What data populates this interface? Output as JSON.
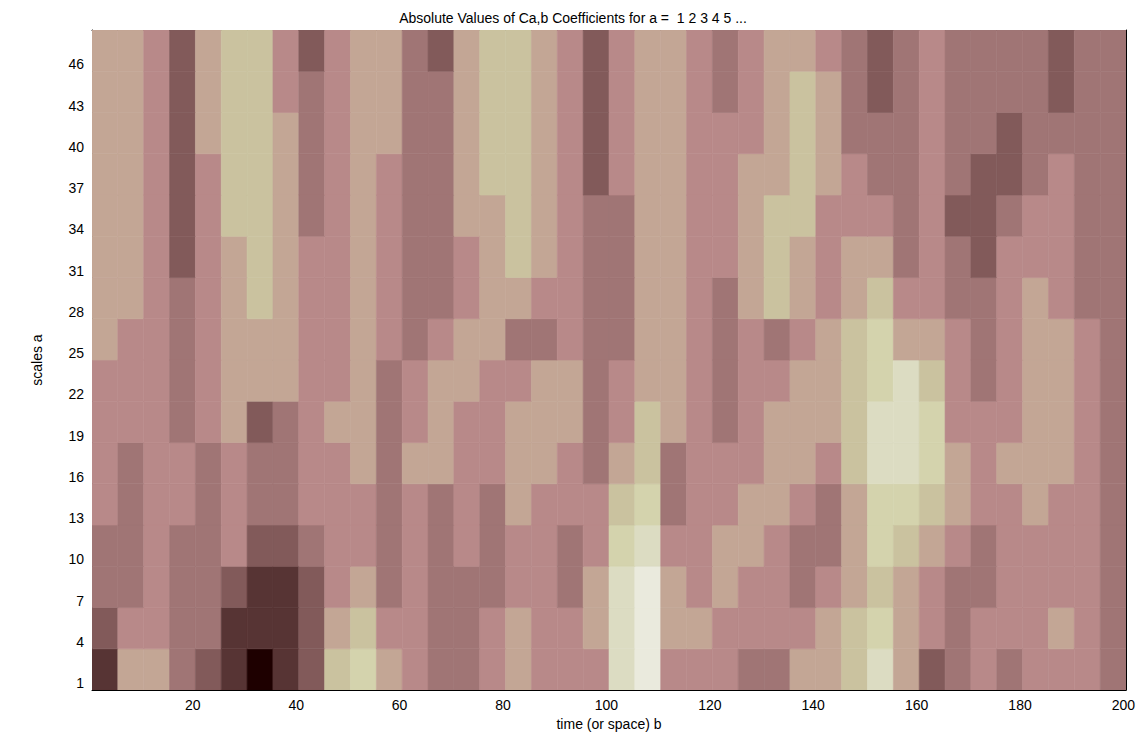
{
  "chart_data": {
    "type": "heatmap",
    "title": "Absolute Values of Ca,b Coefficients for a =  1 2 3 4 5 ...",
    "x_label": "time (or space) b",
    "y_label": "scales a",
    "x": [
      3,
      8,
      13,
      18,
      23,
      28,
      33,
      38,
      43,
      48,
      53,
      58,
      63,
      68,
      73,
      78,
      83,
      88,
      93,
      98,
      103,
      108,
      113,
      118,
      123,
      128,
      133,
      138,
      143,
      148,
      153,
      158,
      163,
      168,
      173,
      178,
      183,
      188,
      193,
      198
    ],
    "y": [
      2,
      5,
      8,
      11,
      14,
      17,
      20,
      23,
      26,
      29,
      32,
      35,
      38,
      41,
      44,
      47
    ],
    "xlim": [
      0.5,
      200.5
    ],
    "ylim": [
      0.5,
      48.5
    ],
    "xticks": [
      20,
      40,
      60,
      80,
      100,
      120,
      140,
      160,
      180,
      200
    ],
    "yticks": [
      1,
      4,
      7,
      10,
      13,
      16,
      19,
      22,
      25,
      28,
      31,
      34,
      37,
      40,
      43,
      46
    ],
    "zlim": [
      0,
      1
    ],
    "cells": [
      [
        0.1,
        0.5,
        0.5,
        0.3,
        0.2,
        0.1,
        0.0,
        0.1,
        0.2,
        0.6,
        0.7,
        0.5,
        0.4,
        0.3,
        0.3,
        0.4,
        0.5,
        0.4,
        0.4,
        0.4,
        0.8,
        0.9,
        0.4,
        0.4,
        0.4,
        0.3,
        0.3,
        0.5,
        0.5,
        0.6,
        0.8,
        0.5,
        0.2,
        0.3,
        0.4,
        0.3,
        0.4,
        0.4,
        0.4,
        0.3
      ],
      [
        0.2,
        0.4,
        0.4,
        0.3,
        0.3,
        0.1,
        0.1,
        0.1,
        0.2,
        0.5,
        0.6,
        0.4,
        0.4,
        0.3,
        0.3,
        0.4,
        0.5,
        0.4,
        0.4,
        0.5,
        0.8,
        0.9,
        0.5,
        0.5,
        0.4,
        0.4,
        0.4,
        0.4,
        0.5,
        0.6,
        0.7,
        0.5,
        0.4,
        0.3,
        0.4,
        0.4,
        0.4,
        0.5,
        0.4,
        0.3
      ],
      [
        0.3,
        0.3,
        0.4,
        0.3,
        0.3,
        0.2,
        0.1,
        0.1,
        0.2,
        0.4,
        0.5,
        0.3,
        0.4,
        0.3,
        0.3,
        0.3,
        0.4,
        0.4,
        0.3,
        0.5,
        0.8,
        0.9,
        0.5,
        0.4,
        0.5,
        0.4,
        0.4,
        0.3,
        0.4,
        0.5,
        0.6,
        0.5,
        0.4,
        0.3,
        0.3,
        0.4,
        0.4,
        0.4,
        0.4,
        0.3
      ],
      [
        0.3,
        0.3,
        0.4,
        0.3,
        0.3,
        0.4,
        0.2,
        0.2,
        0.3,
        0.4,
        0.4,
        0.3,
        0.4,
        0.3,
        0.4,
        0.3,
        0.4,
        0.4,
        0.3,
        0.4,
        0.7,
        0.8,
        0.4,
        0.4,
        0.5,
        0.5,
        0.4,
        0.3,
        0.3,
        0.5,
        0.7,
        0.6,
        0.5,
        0.4,
        0.3,
        0.4,
        0.4,
        0.4,
        0.4,
        0.3
      ],
      [
        0.4,
        0.3,
        0.4,
        0.4,
        0.3,
        0.4,
        0.3,
        0.3,
        0.4,
        0.4,
        0.4,
        0.3,
        0.4,
        0.3,
        0.4,
        0.3,
        0.5,
        0.4,
        0.4,
        0.4,
        0.6,
        0.7,
        0.3,
        0.4,
        0.4,
        0.5,
        0.5,
        0.4,
        0.3,
        0.5,
        0.7,
        0.7,
        0.6,
        0.5,
        0.4,
        0.4,
        0.5,
        0.4,
        0.4,
        0.3
      ],
      [
        0.4,
        0.3,
        0.4,
        0.4,
        0.3,
        0.4,
        0.3,
        0.3,
        0.4,
        0.4,
        0.5,
        0.3,
        0.5,
        0.5,
        0.4,
        0.4,
        0.5,
        0.5,
        0.4,
        0.3,
        0.5,
        0.6,
        0.3,
        0.4,
        0.4,
        0.4,
        0.5,
        0.5,
        0.4,
        0.6,
        0.8,
        0.8,
        0.7,
        0.5,
        0.4,
        0.5,
        0.5,
        0.5,
        0.4,
        0.3
      ],
      [
        0.4,
        0.4,
        0.4,
        0.3,
        0.4,
        0.5,
        0.2,
        0.3,
        0.4,
        0.5,
        0.5,
        0.3,
        0.4,
        0.5,
        0.4,
        0.4,
        0.5,
        0.5,
        0.5,
        0.3,
        0.4,
        0.6,
        0.5,
        0.4,
        0.3,
        0.4,
        0.5,
        0.5,
        0.5,
        0.6,
        0.8,
        0.8,
        0.7,
        0.4,
        0.4,
        0.4,
        0.5,
        0.5,
        0.4,
        0.3
      ],
      [
        0.4,
        0.4,
        0.4,
        0.3,
        0.4,
        0.5,
        0.5,
        0.5,
        0.4,
        0.4,
        0.5,
        0.3,
        0.4,
        0.5,
        0.5,
        0.4,
        0.4,
        0.5,
        0.5,
        0.3,
        0.4,
        0.5,
        0.5,
        0.4,
        0.3,
        0.4,
        0.4,
        0.5,
        0.5,
        0.6,
        0.7,
        0.8,
        0.6,
        0.4,
        0.3,
        0.4,
        0.5,
        0.5,
        0.4,
        0.3
      ],
      [
        0.5,
        0.4,
        0.4,
        0.3,
        0.4,
        0.5,
        0.5,
        0.5,
        0.4,
        0.4,
        0.5,
        0.4,
        0.3,
        0.4,
        0.5,
        0.5,
        0.3,
        0.3,
        0.4,
        0.3,
        0.3,
        0.5,
        0.5,
        0.4,
        0.3,
        0.4,
        0.3,
        0.4,
        0.5,
        0.6,
        0.7,
        0.5,
        0.5,
        0.4,
        0.3,
        0.4,
        0.5,
        0.5,
        0.4,
        0.3
      ],
      [
        0.5,
        0.5,
        0.4,
        0.3,
        0.4,
        0.5,
        0.6,
        0.5,
        0.4,
        0.4,
        0.5,
        0.4,
        0.3,
        0.3,
        0.4,
        0.5,
        0.5,
        0.4,
        0.4,
        0.3,
        0.3,
        0.5,
        0.5,
        0.4,
        0.3,
        0.5,
        0.6,
        0.5,
        0.4,
        0.5,
        0.6,
        0.4,
        0.4,
        0.3,
        0.3,
        0.4,
        0.5,
        0.4,
        0.3,
        0.3
      ],
      [
        0.5,
        0.5,
        0.4,
        0.2,
        0.4,
        0.5,
        0.6,
        0.5,
        0.4,
        0.4,
        0.5,
        0.4,
        0.3,
        0.3,
        0.4,
        0.5,
        0.6,
        0.5,
        0.4,
        0.3,
        0.3,
        0.5,
        0.5,
        0.4,
        0.4,
        0.5,
        0.6,
        0.5,
        0.4,
        0.5,
        0.5,
        0.3,
        0.4,
        0.3,
        0.2,
        0.4,
        0.4,
        0.4,
        0.3,
        0.3
      ],
      [
        0.5,
        0.5,
        0.4,
        0.2,
        0.4,
        0.6,
        0.6,
        0.5,
        0.3,
        0.4,
        0.5,
        0.4,
        0.3,
        0.3,
        0.5,
        0.5,
        0.6,
        0.5,
        0.4,
        0.3,
        0.3,
        0.5,
        0.5,
        0.4,
        0.4,
        0.5,
        0.6,
        0.6,
        0.4,
        0.4,
        0.4,
        0.3,
        0.4,
        0.2,
        0.2,
        0.3,
        0.4,
        0.4,
        0.3,
        0.3
      ],
      [
        0.5,
        0.5,
        0.4,
        0.2,
        0.4,
        0.6,
        0.6,
        0.5,
        0.3,
        0.4,
        0.5,
        0.4,
        0.3,
        0.3,
        0.5,
        0.6,
        0.6,
        0.5,
        0.4,
        0.2,
        0.4,
        0.5,
        0.5,
        0.4,
        0.4,
        0.5,
        0.5,
        0.6,
        0.5,
        0.4,
        0.3,
        0.3,
        0.4,
        0.3,
        0.2,
        0.2,
        0.3,
        0.4,
        0.3,
        0.3
      ],
      [
        0.5,
        0.5,
        0.4,
        0.2,
        0.5,
        0.6,
        0.6,
        0.5,
        0.3,
        0.4,
        0.5,
        0.5,
        0.3,
        0.3,
        0.5,
        0.6,
        0.6,
        0.5,
        0.4,
        0.2,
        0.4,
        0.5,
        0.5,
        0.4,
        0.4,
        0.4,
        0.5,
        0.6,
        0.5,
        0.3,
        0.3,
        0.3,
        0.4,
        0.3,
        0.3,
        0.2,
        0.3,
        0.3,
        0.3,
        0.3
      ],
      [
        0.5,
        0.5,
        0.4,
        0.2,
        0.5,
        0.6,
        0.6,
        0.4,
        0.3,
        0.4,
        0.5,
        0.5,
        0.3,
        0.3,
        0.5,
        0.6,
        0.6,
        0.5,
        0.4,
        0.2,
        0.4,
        0.5,
        0.5,
        0.4,
        0.3,
        0.4,
        0.5,
        0.6,
        0.5,
        0.3,
        0.2,
        0.3,
        0.4,
        0.3,
        0.3,
        0.3,
        0.3,
        0.2,
        0.3,
        0.3
      ],
      [
        0.5,
        0.5,
        0.4,
        0.2,
        0.5,
        0.6,
        0.6,
        0.4,
        0.2,
        0.4,
        0.5,
        0.5,
        0.3,
        0.2,
        0.5,
        0.6,
        0.6,
        0.5,
        0.4,
        0.2,
        0.4,
        0.5,
        0.5,
        0.4,
        0.3,
        0.4,
        0.5,
        0.5,
        0.4,
        0.3,
        0.2,
        0.3,
        0.4,
        0.3,
        0.3,
        0.3,
        0.3,
        0.2,
        0.3,
        0.3
      ]
    ]
  }
}
